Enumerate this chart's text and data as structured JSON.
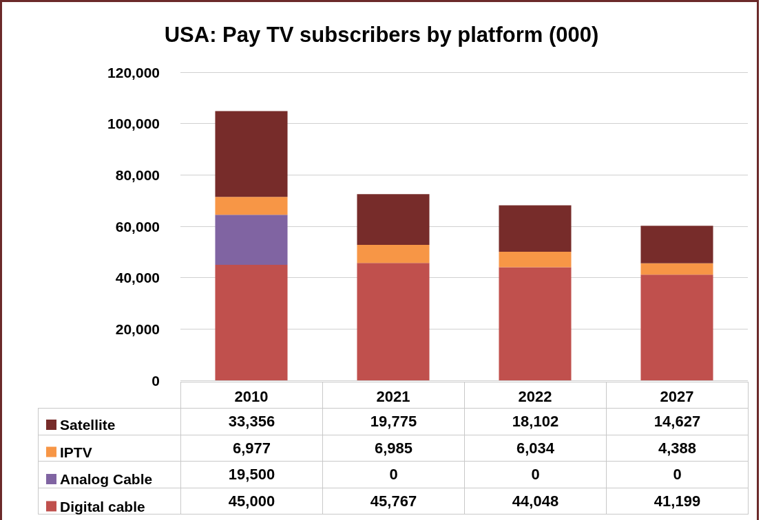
{
  "chart_data": {
    "type": "bar",
    "title": "USA: Pay TV subscribers by platform (000)",
    "categories": [
      "2010",
      "2021",
      "2022",
      "2027"
    ],
    "stacked": true,
    "series": [
      {
        "name": "Digital cable",
        "color": "#c0504d",
        "values": [
          45000,
          45767,
          44048,
          41199
        ],
        "value_labels": [
          "45,000",
          "45,767",
          "44,048",
          "41,199"
        ]
      },
      {
        "name": "Analog Cable",
        "color": "#8064a2",
        "values": [
          19500,
          0,
          0,
          0
        ],
        "value_labels": [
          "19,500",
          "0",
          "0",
          "0"
        ]
      },
      {
        "name": "IPTV",
        "color": "#f79646",
        "values": [
          6977,
          6985,
          6034,
          4388
        ],
        "value_labels": [
          "6,977",
          "6,985",
          "6,034",
          "4,388"
        ]
      },
      {
        "name": "Satellite",
        "color": "#772c2a",
        "values": [
          33356,
          19775,
          18102,
          14627
        ],
        "value_labels": [
          "33,356",
          "19,775",
          "18,102",
          "14,627"
        ]
      }
    ],
    "ylim": [
      0,
      120000
    ],
    "yticks": [
      0,
      {
        "value": 20000,
        "label": "20,000"
      },
      {
        "value": 40000,
        "label": "40,000"
      },
      {
        "value": 60000,
        "label": "60,000"
      },
      {
        "value": 80000,
        "label": "80,000"
      },
      {
        "value": 100000,
        "label": "100,000"
      },
      {
        "value": 120000,
        "label": "120,000"
      }
    ],
    "grid": "y",
    "legend": "bottom"
  }
}
